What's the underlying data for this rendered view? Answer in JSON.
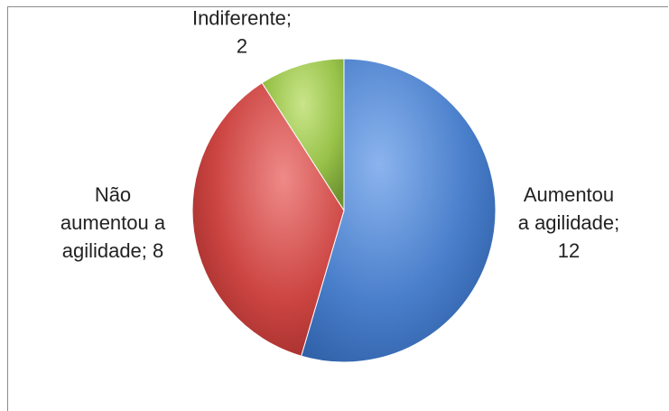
{
  "chart_data": {
    "type": "pie",
    "title": "",
    "categories": [
      "Aumentou a agilidade",
      "Não aumentou a agilidade",
      "Indiferente"
    ],
    "values": [
      12,
      8,
      2
    ],
    "colors": [
      "#4a7fcb",
      "#cc4542",
      "#98c249"
    ],
    "labels": [
      [
        "Aumentou",
        "a agilidade;",
        "12"
      ],
      [
        "Não",
        "aumentou a",
        "agilidade; 8"
      ],
      [
        "Indiferente;",
        "2"
      ]
    ],
    "legend": "none",
    "start_angle_deg": 0,
    "direction": "clockwise"
  }
}
